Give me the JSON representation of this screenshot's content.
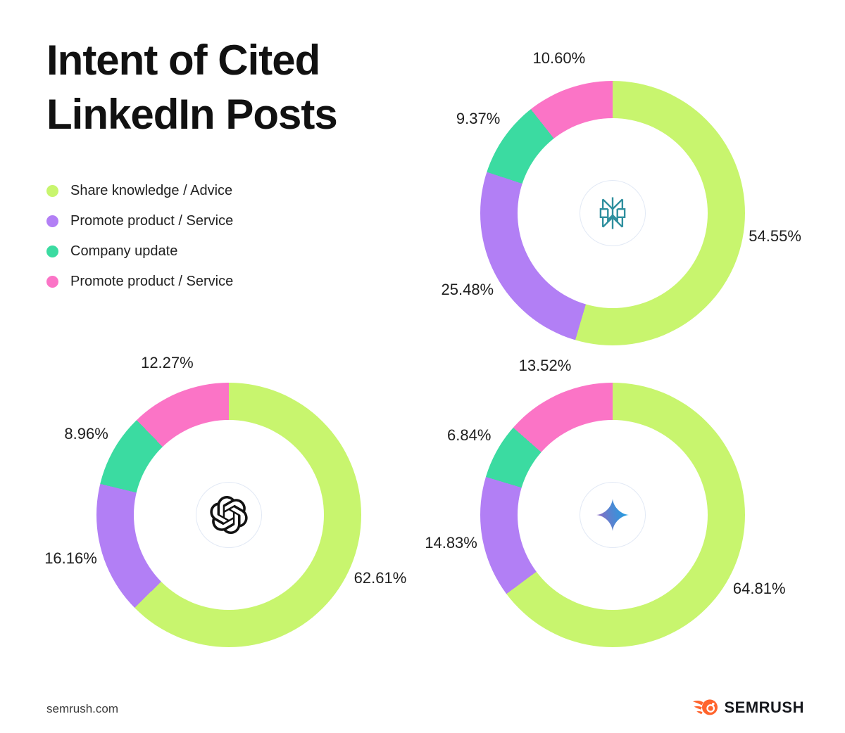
{
  "title": "Intent of Cited\nLinkedIn Posts",
  "segment_colors": [
    "#C8F56E",
    "#B27FF5",
    "#3BDBA1",
    "#FB74C6"
  ],
  "brand_colors": {
    "perplexity_teal": "#2E8F9E",
    "openai_black": "#121212",
    "gemini_gradient": [
      "#9168C0",
      "#5684D1",
      "#1BA1E3"
    ],
    "semrush_orange": "#FF642D"
  },
  "legend": [
    {
      "label": "Share knowledge / Advice",
      "color": "#C8F56E"
    },
    {
      "label": "Promote product / Service",
      "color": "#B27FF5"
    },
    {
      "label": "Company update",
      "color": "#3BDBA1"
    },
    {
      "label": "Promote product / Service",
      "color": "#FB74C6"
    }
  ],
  "chart_data": [
    {
      "type": "pie",
      "donut": true,
      "logo": "perplexity-logo",
      "categories": [
        "Share knowledge / Advice",
        "Promote product / Service",
        "Company update",
        "Promote product / Service"
      ],
      "values": [
        54.55,
        25.48,
        9.37,
        10.6
      ],
      "labels": [
        "54.55%",
        "25.48%",
        "9.37%",
        "10.60%"
      ],
      "start_angle_deg": 0,
      "direction": "clockwise"
    },
    {
      "type": "pie",
      "donut": true,
      "logo": "openai-logo",
      "categories": [
        "Share knowledge / Advice",
        "Promote product / Service",
        "Company update",
        "Promote product / Service"
      ],
      "values": [
        62.61,
        16.16,
        8.96,
        12.27
      ],
      "labels": [
        "62.61%",
        "16.16%",
        "8.96%",
        "12.27%"
      ],
      "start_angle_deg": 0,
      "direction": "clockwise"
    },
    {
      "type": "pie",
      "donut": true,
      "logo": "gemini-logo",
      "categories": [
        "Share knowledge / Advice",
        "Promote product / Service",
        "Company update",
        "Promote product / Service"
      ],
      "values": [
        64.81,
        14.83,
        6.84,
        13.52
      ],
      "labels": [
        "64.81%",
        "14.83%",
        "6.84%",
        "13.52%"
      ],
      "start_angle_deg": 0,
      "direction": "clockwise"
    }
  ],
  "footer": {
    "site": "semrush.com",
    "brand": "SEMRUSH"
  }
}
